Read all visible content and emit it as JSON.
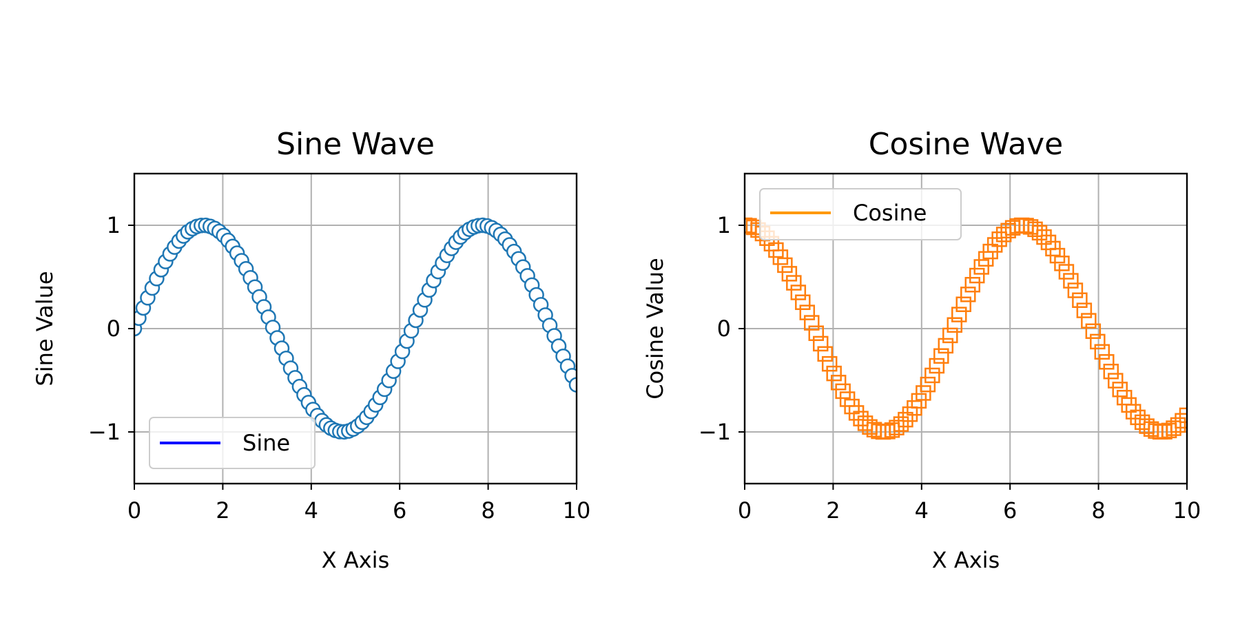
{
  "chart_data": [
    {
      "type": "scatter",
      "title": "Sine Wave",
      "xlabel": "X Axis",
      "ylabel": "Sine Value",
      "xlim": [
        0,
        10
      ],
      "ylim": [
        -1.5,
        1.5
      ],
      "xticks": [
        0,
        2,
        4,
        6,
        8,
        10
      ],
      "xtick_labels": [
        "0",
        "2",
        "4",
        "6",
        "8",
        "10"
      ],
      "yticks": [
        -1,
        0,
        1
      ],
      "ytick_labels": [
        "−1",
        "0",
        "1"
      ],
      "grid": true,
      "legend": {
        "placement": "lower-left",
        "label": "Sine",
        "line_color": "#0000ff"
      },
      "series": [
        {
          "name": "Sine",
          "marker": "circle",
          "marker_color": "#1f77b4",
          "x": [
            0,
            0.101,
            0.202,
            0.303,
            0.404,
            0.505,
            0.606,
            0.707,
            0.808,
            0.909,
            1.01,
            1.111,
            1.212,
            1.313,
            1.414,
            1.515,
            1.616,
            1.717,
            1.818,
            1.919,
            2.02,
            2.121,
            2.222,
            2.323,
            2.424,
            2.525,
            2.626,
            2.727,
            2.828,
            2.929,
            3.03,
            3.131,
            3.232,
            3.333,
            3.434,
            3.535,
            3.636,
            3.737,
            3.838,
            3.939,
            4.04,
            4.141,
            4.242,
            4.343,
            4.444,
            4.545,
            4.646,
            4.747,
            4.848,
            4.949,
            5.051,
            5.152,
            5.253,
            5.354,
            5.455,
            5.556,
            5.657,
            5.758,
            5.859,
            5.96,
            6.061,
            6.162,
            6.263,
            6.364,
            6.465,
            6.566,
            6.667,
            6.768,
            6.869,
            6.97,
            7.071,
            7.172,
            7.273,
            7.374,
            7.475,
            7.576,
            7.677,
            7.778,
            7.879,
            7.98,
            8.081,
            8.182,
            8.283,
            8.384,
            8.485,
            8.586,
            8.687,
            8.788,
            8.889,
            8.99,
            9.091,
            9.192,
            9.293,
            9.394,
            9.495,
            9.596,
            9.697,
            9.798,
            9.899,
            10
          ],
          "y": [
            0,
            0.101,
            0.2,
            0.298,
            0.393,
            0.484,
            0.57,
            0.649,
            0.723,
            0.789,
            0.847,
            0.896,
            0.937,
            0.967,
            0.988,
            0.998,
            0.999,
            0.989,
            0.969,
            0.94,
            0.901,
            0.853,
            0.795,
            0.73,
            0.657,
            0.578,
            0.492,
            0.402,
            0.307,
            0.21,
            0.111,
            0.011,
            -0.09,
            -0.19,
            -0.288,
            -0.383,
            -0.476,
            -0.561,
            -0.641,
            -0.716,
            -0.783,
            -0.842,
            -0.891,
            -0.932,
            -0.964,
            -0.985,
            -0.997,
            -0.999,
            -0.991,
            -0.972,
            -0.944,
            -0.906,
            -0.859,
            -0.802,
            -0.738,
            -0.666,
            -0.587,
            -0.502,
            -0.412,
            -0.317,
            -0.221,
            -0.121,
            -0.021,
            0.08,
            0.18,
            0.278,
            0.374,
            0.465,
            0.552,
            0.634,
            0.708,
            0.776,
            0.836,
            0.887,
            0.928,
            0.961,
            0.983,
            0.996,
            1,
            0.993,
            0.976,
            0.949,
            0.912,
            0.866,
            0.81,
            0.746,
            0.675,
            0.596,
            0.511,
            0.421,
            0.327,
            0.231,
            0.131,
            0.031,
            -0.07,
            -0.17,
            -0.268,
            -0.364,
            -0.456,
            -0.544
          ]
        }
      ]
    },
    {
      "type": "scatter",
      "title": "Cosine Wave",
      "xlabel": "X Axis",
      "ylabel": "Cosine Value",
      "xlim": [
        0,
        10
      ],
      "ylim": [
        -1.5,
        1.5
      ],
      "xticks": [
        0,
        2,
        4,
        6,
        8,
        10
      ],
      "xtick_labels": [
        "0",
        "2",
        "4",
        "6",
        "8",
        "10"
      ],
      "yticks": [
        -1,
        0,
        1
      ],
      "ytick_labels": [
        "−1",
        "0",
        "1"
      ],
      "grid": true,
      "legend": {
        "placement": "upper-left",
        "label": "Cosine",
        "line_color": "#ff9900"
      },
      "series": [
        {
          "name": "Cosine",
          "marker": "square",
          "marker_color": "#ff7f0e",
          "x": [
            0,
            0.101,
            0.202,
            0.303,
            0.404,
            0.505,
            0.606,
            0.707,
            0.808,
            0.909,
            1.01,
            1.111,
            1.212,
            1.313,
            1.414,
            1.515,
            1.616,
            1.717,
            1.818,
            1.919,
            2.02,
            2.121,
            2.222,
            2.323,
            2.424,
            2.525,
            2.626,
            2.727,
            2.828,
            2.929,
            3.03,
            3.131,
            3.232,
            3.333,
            3.434,
            3.535,
            3.636,
            3.737,
            3.838,
            3.939,
            4.04,
            4.141,
            4.242,
            4.343,
            4.444,
            4.545,
            4.646,
            4.747,
            4.848,
            4.949,
            5.051,
            5.152,
            5.253,
            5.354,
            5.455,
            5.556,
            5.657,
            5.758,
            5.859,
            5.96,
            6.061,
            6.162,
            6.263,
            6.364,
            6.465,
            6.566,
            6.667,
            6.768,
            6.869,
            6.97,
            7.071,
            7.172,
            7.273,
            7.374,
            7.475,
            7.576,
            7.677,
            7.778,
            7.879,
            7.98,
            8.081,
            8.182,
            8.283,
            8.384,
            8.485,
            8.586,
            8.687,
            8.788,
            8.889,
            8.99,
            9.091,
            9.192,
            9.293,
            9.394,
            9.495,
            9.596,
            9.697,
            9.798,
            9.899,
            10
          ],
          "y": [
            1,
            0.995,
            0.98,
            0.954,
            0.92,
            0.875,
            0.822,
            0.76,
            0.691,
            0.614,
            0.531,
            0.443,
            0.35,
            0.255,
            0.156,
            0.056,
            -0.045,
            -0.146,
            -0.245,
            -0.341,
            -0.434,
            -0.522,
            -0.606,
            -0.683,
            -0.754,
            -0.816,
            -0.871,
            -0.916,
            -0.952,
            -0.978,
            -0.994,
            -1,
            -0.996,
            -0.982,
            -0.958,
            -0.924,
            -0.881,
            -0.828,
            -0.768,
            -0.699,
            -0.623,
            -0.541,
            -0.453,
            -0.36,
            -0.265,
            -0.166,
            -0.066,
            0.035,
            0.136,
            0.235,
            0.331,
            0.425,
            0.513,
            0.597,
            0.675,
            0.746,
            0.81,
            0.865,
            0.911,
            0.948,
            0.975,
            0.993,
            1,
            0.997,
            0.984,
            0.961,
            0.928,
            0.886,
            0.834,
            0.774,
            0.706,
            0.631,
            0.55,
            0.463,
            0.37,
            0.275,
            0.176,
            0.076,
            -0.025,
            -0.126,
            -0.225,
            -0.322,
            -0.415,
            -0.504,
            -0.589,
            -0.668,
            -0.739,
            -0.804,
            -0.859,
            -0.906,
            -0.944,
            -0.972,
            -0.991,
            -0.999,
            -0.998,
            -0.986,
            -0.964,
            -0.933,
            -0.892,
            -0.839
          ]
        }
      ]
    }
  ]
}
